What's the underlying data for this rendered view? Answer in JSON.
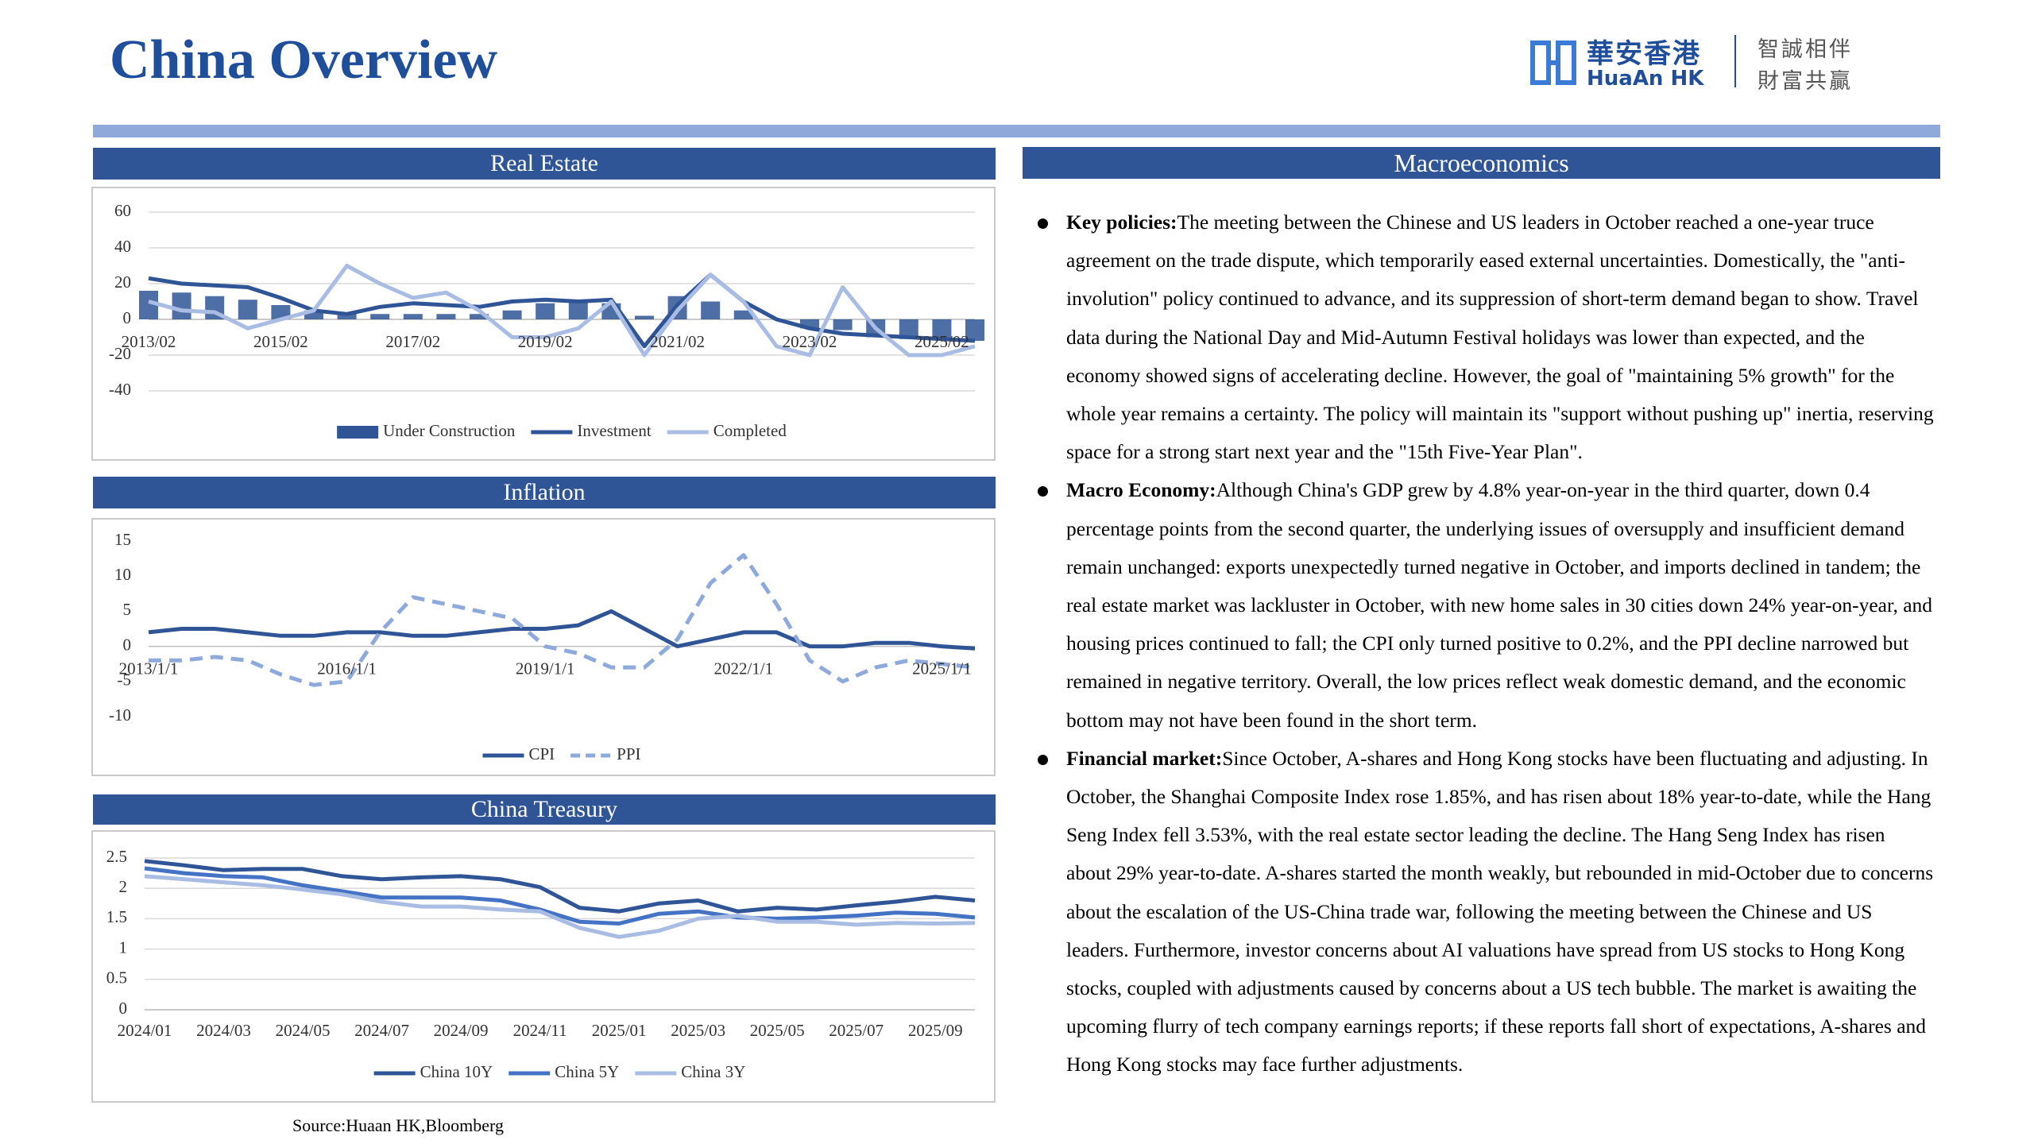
{
  "header": {
    "title": "China Overview",
    "logo_cn": "華安香港",
    "logo_en": "HuaAn HK",
    "slogan_1": "智誠相伴",
    "slogan_2": "財富共贏"
  },
  "chart_data": [
    {
      "type": "combo",
      "title": "Real Estate",
      "categories": [
        "2013/02",
        null,
        null,
        null,
        "2015/02",
        null,
        null,
        null,
        "2017/02",
        null,
        null,
        null,
        "2019/02",
        null,
        null,
        null,
        "2021/02",
        null,
        null,
        null,
        "2023/02",
        null,
        null,
        null,
        "2025/02",
        null
      ],
      "series": [
        {
          "name": "Under Construction",
          "kind": "bar",
          "color": "#2f5597",
          "values": [
            16,
            15,
            13,
            11,
            8,
            5,
            4,
            3,
            3,
            3,
            3,
            5,
            9,
            10,
            9,
            2,
            13,
            10,
            5,
            0,
            -5,
            -6,
            -10,
            -11,
            -11,
            -12
          ]
        },
        {
          "name": "Investment",
          "kind": "line",
          "color": "#2f5597",
          "values": [
            23,
            20,
            19,
            18,
            12,
            5,
            3,
            7,
            9,
            8,
            7,
            10,
            11,
            10,
            11,
            -15,
            8,
            25,
            10,
            0,
            -5,
            -8,
            -9,
            -10,
            -11,
            -12
          ]
        },
        {
          "name": "Completed",
          "kind": "line",
          "color": "#a9bce3",
          "values": [
            10,
            5,
            4,
            -5,
            0,
            5,
            30,
            20,
            12,
            15,
            5,
            -10,
            -10,
            -5,
            10,
            -20,
            5,
            25,
            10,
            -15,
            -20,
            18,
            -5,
            -20,
            -20,
            -15
          ]
        }
      ],
      "ylim": [
        -40,
        60
      ],
      "yticks": [
        -40,
        -20,
        0,
        20,
        40,
        60
      ],
      "grid": true,
      "legend": "bottom"
    },
    {
      "type": "line",
      "title": "Inflation",
      "categories": [
        "2013/1/1",
        null,
        null,
        null,
        null,
        null,
        "2016/1/1",
        null,
        null,
        null,
        null,
        null,
        "2019/1/1",
        null,
        null,
        null,
        null,
        null,
        "2022/1/1",
        null,
        null,
        null,
        null,
        null,
        "2025/1/1",
        null
      ],
      "series": [
        {
          "name": "CPI",
          "color": "#2f5597",
          "values": [
            2,
            2.5,
            2.5,
            2,
            1.5,
            1.5,
            2,
            2,
            1.5,
            1.5,
            2,
            2.5,
            2.5,
            3,
            5,
            2.5,
            0,
            1,
            2,
            2,
            0,
            0,
            0.5,
            0.5,
            0,
            -0.3
          ]
        },
        {
          "name": "PPI",
          "color": "#8ea9db",
          "dash": true,
          "values": [
            -2,
            -2,
            -1.5,
            -2,
            -4,
            -5.5,
            -5,
            2,
            7,
            6,
            5,
            4,
            0,
            -1,
            -3,
            -3,
            1,
            9,
            13,
            6,
            -2,
            -5,
            -3,
            -2,
            -2.5,
            -3
          ]
        }
      ],
      "ylim": [
        -10,
        15
      ],
      "yticks": [
        -10,
        -5,
        0,
        5,
        10,
        15
      ],
      "grid": false,
      "legend": "bottom"
    },
    {
      "type": "line",
      "title": "China Treasury",
      "categories": [
        "2024/01",
        null,
        "2024/03",
        null,
        "2024/05",
        null,
        "2024/07",
        null,
        "2024/09",
        null,
        "2024/11",
        null,
        "2025/01",
        null,
        "2025/03",
        null,
        "2025/05",
        null,
        "2025/07",
        null,
        "2025/09",
        null
      ],
      "series": [
        {
          "name": "China 10Y",
          "color": "#2f5597",
          "values": [
            2.45,
            2.38,
            2.3,
            2.32,
            2.32,
            2.2,
            2.15,
            2.18,
            2.2,
            2.15,
            2.02,
            1.68,
            1.62,
            1.75,
            1.8,
            1.62,
            1.68,
            1.65,
            1.72,
            1.78,
            1.86,
            1.8
          ]
        },
        {
          "name": "China 5Y",
          "color": "#4472c4",
          "values": [
            2.33,
            2.25,
            2.2,
            2.18,
            2.05,
            1.95,
            1.85,
            1.85,
            1.85,
            1.8,
            1.65,
            1.45,
            1.42,
            1.58,
            1.62,
            1.52,
            1.5,
            1.52,
            1.55,
            1.6,
            1.58,
            1.52
          ]
        },
        {
          "name": "China 3Y",
          "color": "#a9bce3",
          "values": [
            2.2,
            2.15,
            2.1,
            2.05,
            1.98,
            1.9,
            1.78,
            1.7,
            1.7,
            1.65,
            1.62,
            1.35,
            1.2,
            1.3,
            1.5,
            1.55,
            1.45,
            1.45,
            1.4,
            1.43,
            1.42,
            1.43
          ]
        }
      ],
      "ylim": [
        0,
        2.5
      ],
      "yticks": [
        0,
        0.5,
        1,
        1.5,
        2,
        2.5
      ],
      "grid": true,
      "legend": "bottom"
    }
  ],
  "macro": {
    "title": "Macroeconomics",
    "items": [
      {
        "label": "Key policies:",
        "text": "The meeting between the Chinese and US leaders in October reached a one-year truce agreement on the trade dispute, which temporarily eased external uncertainties. Domestically, the \"anti-involution\" policy continued to advance, and its suppression of short-term demand began to show. Travel data during the National Day and Mid-Autumn Festival holidays was lower than expected, and the economy showed signs of accelerating decline. However, the goal of \"maintaining 5% growth\" for the whole year remains a certainty. The policy will maintain its \"support without pushing up\" inertia, reserving space for a strong start next year and the \"15th Five-Year Plan\"."
      },
      {
        "label": "Macro Economy:",
        "text": "Although China's GDP grew by 4.8% year-on-year in the third quarter, down 0.4 percentage points from the second quarter, the underlying issues of oversupply and insufficient demand remain unchanged: exports unexpectedly turned negative in October, and imports declined in tandem; the real estate market was lackluster in October, with new home sales in 30 cities down 24% year-on-year, and housing prices continued to fall; the CPI only turned positive to 0.2%, and the PPI decline narrowed but remained in negative territory. Overall, the low prices reflect weak domestic demand, and the economic bottom may not have been found in the short term."
      },
      {
        "label": "Financial market:",
        "text": "Since October, A-shares and Hong Kong stocks have been fluctuating and adjusting. In October, the Shanghai Composite Index rose 1.85%, and has risen about 18% year-to-date, while the Hang Seng Index fell 3.53%, with the real estate sector leading the decline. The Hang Seng Index has risen about 29% year-to-date. A-shares started the month weakly, but rebounded in mid-October due to concerns about the escalation of the US-China trade war, following the meeting between the Chinese and US leaders. Furthermore, investor concerns about AI valuations have spread from US stocks to Hong Kong stocks, coupled with adjustments caused by concerns about a US tech bubble. The market is awaiting the upcoming flurry of tech company earnings reports; if these reports fall short of expectations, A-shares and Hong Kong stocks may face further adjustments."
      }
    ]
  },
  "source": "Source:Huaan HK,Bloomberg"
}
